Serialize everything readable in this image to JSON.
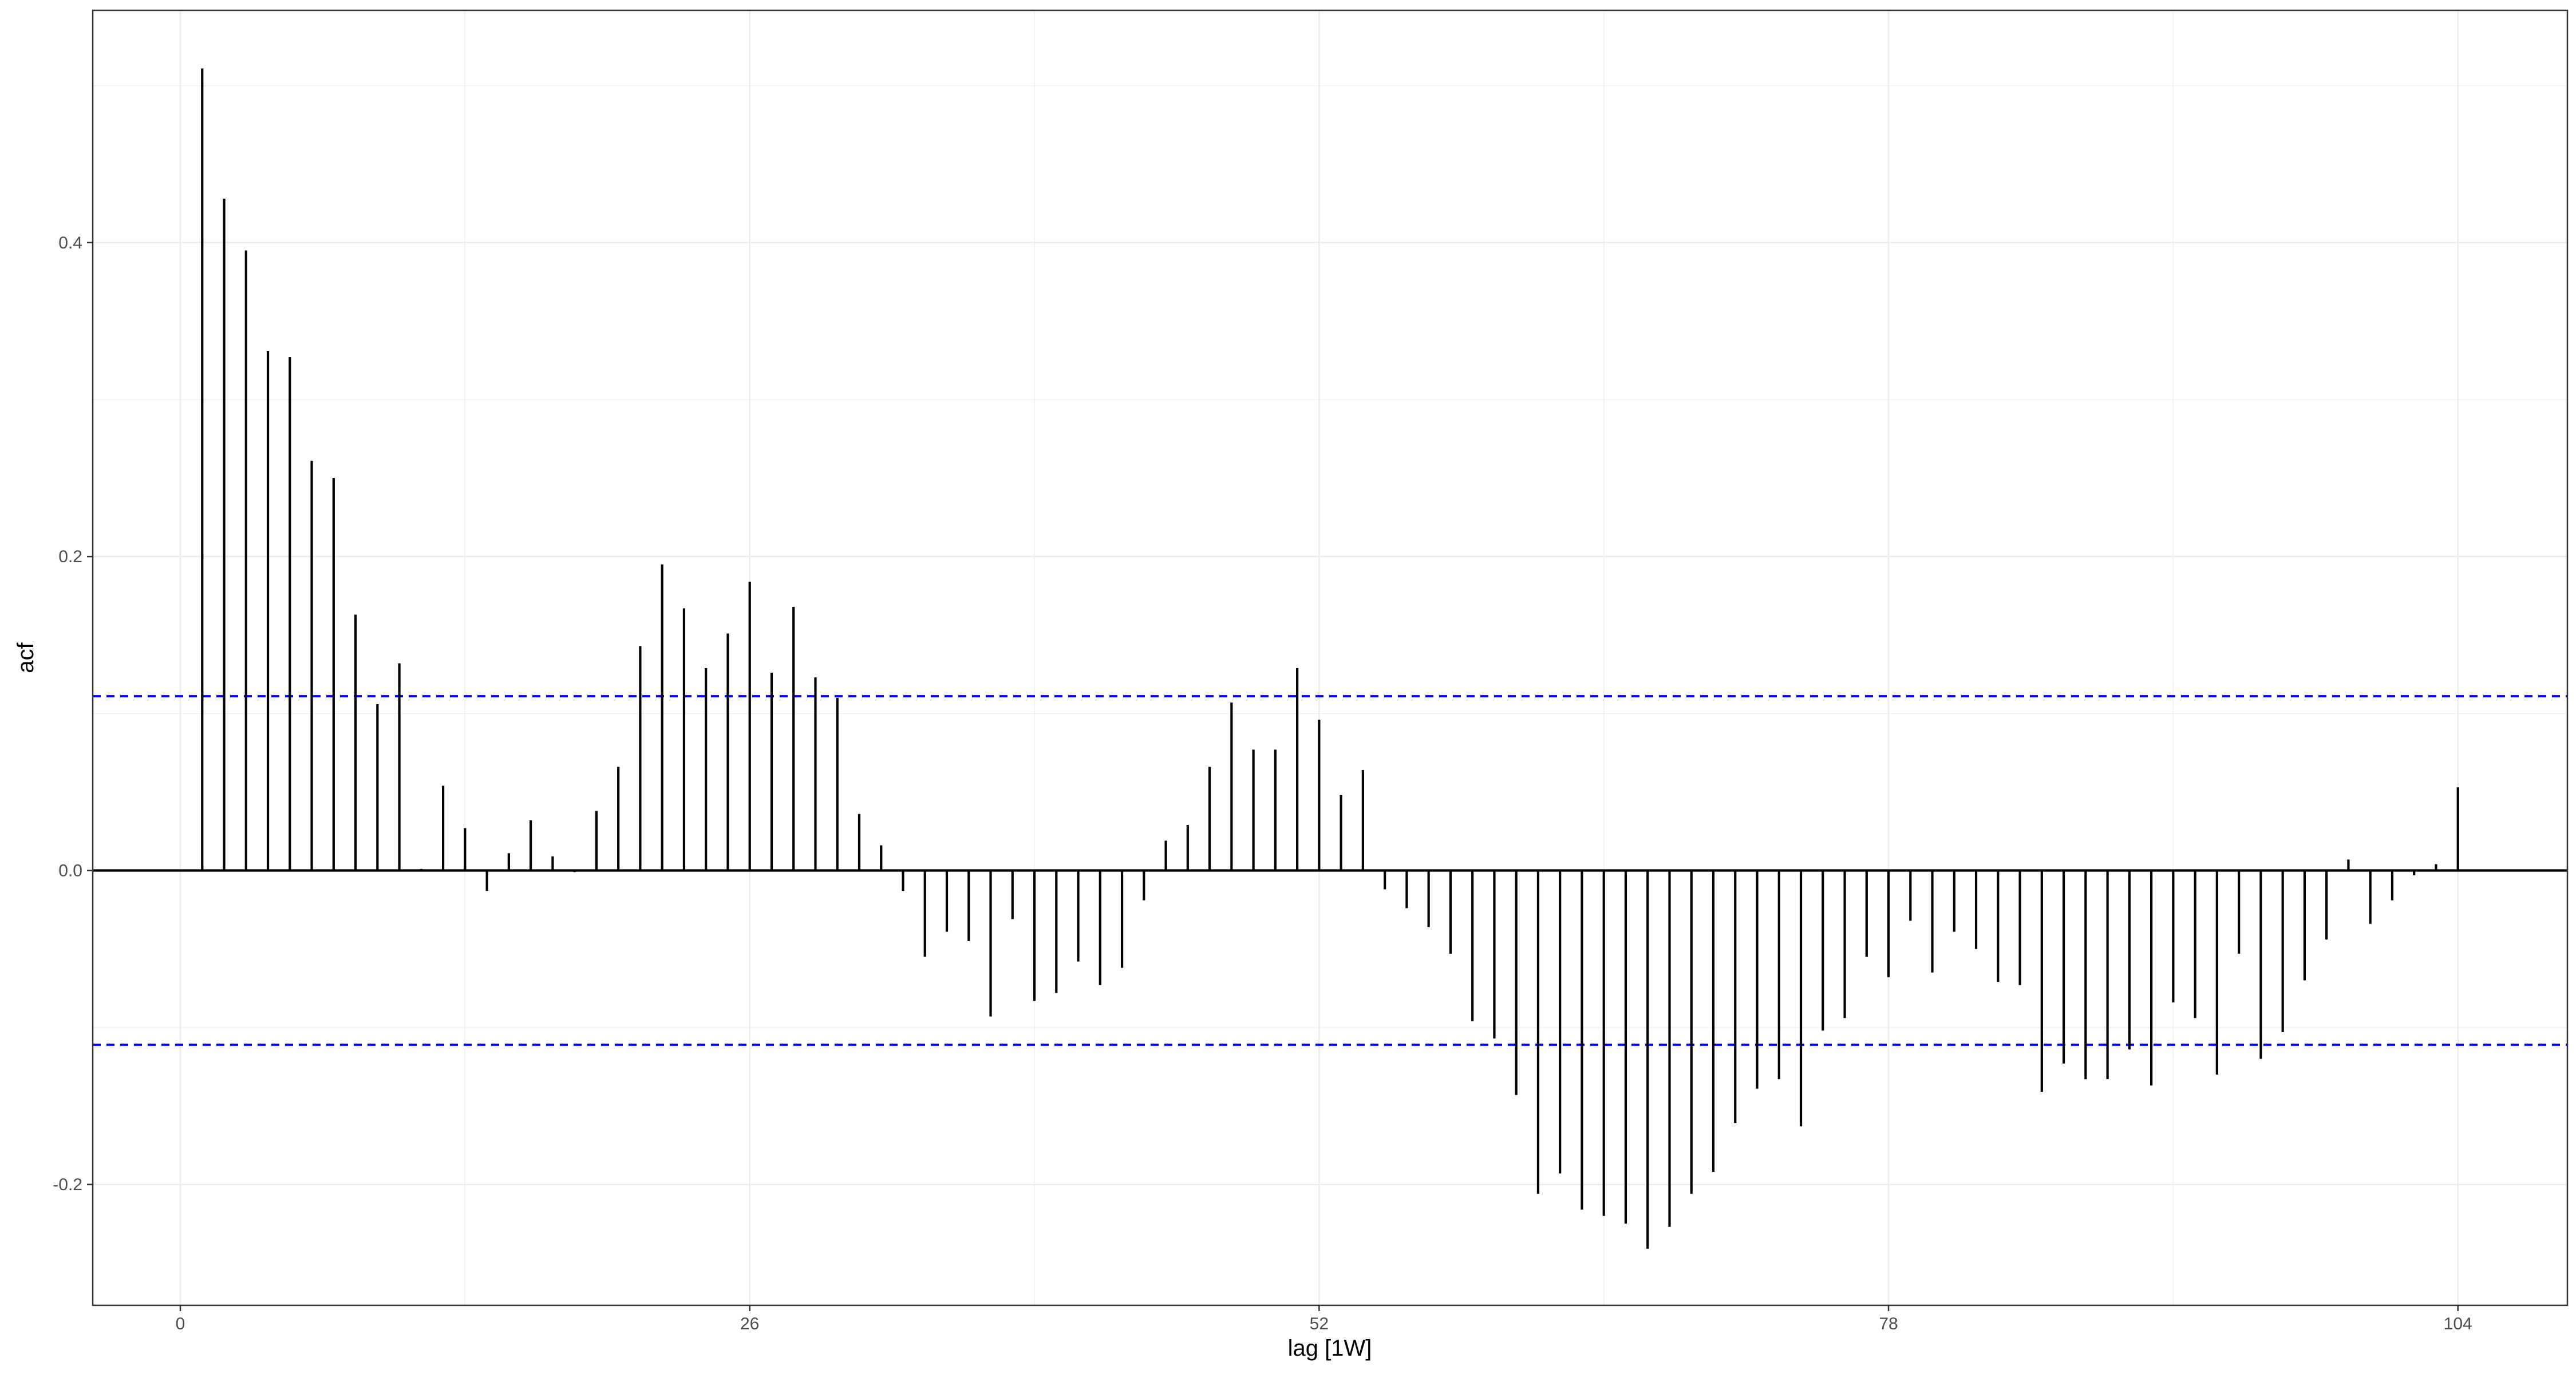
{
  "chart_data": {
    "type": "bar",
    "subtype": "acf-lollipop",
    "xlabel": "lag [1W]",
    "ylabel": "acf",
    "xlim": [
      -4,
      109
    ],
    "ylim": [
      -0.277,
      0.548
    ],
    "x_ticks": [
      0,
      26,
      52,
      78,
      104
    ],
    "x_tick_labels": [
      "0",
      "26",
      "52",
      "78",
      "104"
    ],
    "y_ticks": [
      -0.2,
      0.0,
      0.2,
      0.4
    ],
    "y_tick_labels": [
      "-0.2",
      "0.0",
      "0.2",
      "0.4"
    ],
    "confidence_bound": 0.111,
    "lags": [
      1,
      2,
      3,
      4,
      5,
      6,
      7,
      8,
      9,
      10,
      11,
      12,
      13,
      14,
      15,
      16,
      17,
      18,
      19,
      20,
      21,
      22,
      23,
      24,
      25,
      26,
      27,
      28,
      29,
      30,
      31,
      32,
      33,
      34,
      35,
      36,
      37,
      38,
      39,
      40,
      41,
      42,
      43,
      44,
      45,
      46,
      47,
      48,
      49,
      50,
      51,
      52,
      53,
      54,
      55,
      56,
      57,
      58,
      59,
      60,
      61,
      62,
      63,
      64,
      65,
      66,
      67,
      68,
      69,
      70,
      71,
      72,
      73,
      74,
      75,
      76,
      77,
      78,
      79,
      80,
      81,
      82,
      83,
      84,
      85,
      86,
      87,
      88,
      89,
      90,
      91,
      92,
      93,
      94,
      95,
      96,
      97,
      98,
      99,
      100,
      101,
      102,
      103,
      104
    ],
    "values": [
      0.511,
      0.428,
      0.395,
      0.331,
      0.327,
      0.261,
      0.25,
      0.163,
      0.106,
      0.132,
      0.001,
      0.054,
      0.027,
      -0.013,
      0.011,
      0.032,
      0.009,
      -0.001,
      0.038,
      0.066,
      0.143,
      0.195,
      0.167,
      0.129,
      0.151,
      0.184,
      0.126,
      0.168,
      0.123,
      0.11,
      0.036,
      0.016,
      -0.013,
      -0.055,
      -0.039,
      -0.045,
      -0.093,
      -0.031,
      -0.083,
      -0.078,
      -0.058,
      -0.073,
      -0.062,
      -0.019,
      0.019,
      0.029,
      0.066,
      0.107,
      0.077,
      0.077,
      0.129,
      0.096,
      0.048,
      0.064,
      -0.012,
      -0.024,
      -0.036,
      -0.053,
      -0.096,
      -0.107,
      -0.143,
      -0.206,
      -0.193,
      -0.216,
      -0.22,
      -0.225,
      -0.241,
      -0.227,
      -0.206,
      -0.192,
      -0.161,
      -0.139,
      -0.133,
      -0.163,
      -0.102,
      -0.094,
      -0.055,
      -0.068,
      -0.032,
      -0.065,
      -0.039,
      -0.05,
      -0.071,
      -0.073,
      -0.141,
      -0.123,
      -0.133,
      -0.133,
      -0.114,
      -0.137,
      -0.084,
      -0.094,
      -0.13,
      -0.053,
      -0.12,
      -0.103,
      -0.07,
      -0.044,
      0.007,
      -0.034,
      -0.019,
      -0.003,
      0.004,
      0.053
    ]
  }
}
